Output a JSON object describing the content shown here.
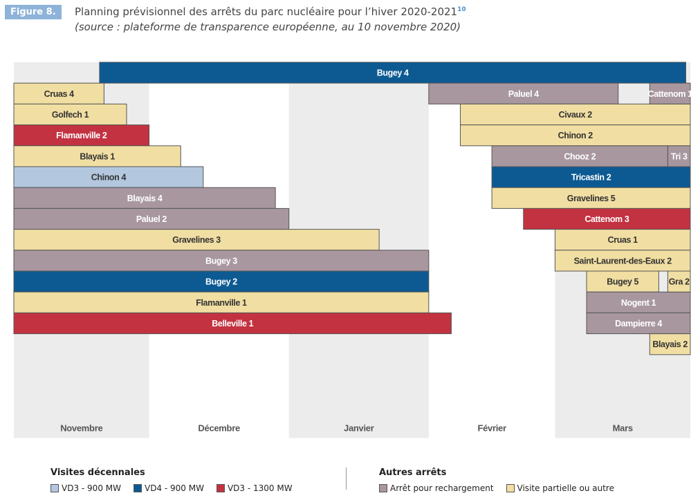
{
  "figure_label": "Figure 8.",
  "title": "Planning prévisionnel des arrêts du parc nucléaire pour l’hiver 2020-2021",
  "title_note": "10",
  "subtitle": "(source : plateforme de transparence européenne, au 10 novembre 2020)",
  "colors": {
    "vd3_900": "#b3c8df",
    "vd4_900": "#0d5a92",
    "vd3_1300": "#c33241",
    "rechargement": "#a8979f",
    "partielle": "#f1dea2",
    "band": "#ececec"
  },
  "chart_data": {
    "type": "gantt",
    "months": [
      "Novembre",
      "Décembre",
      "Janvier",
      "Février",
      "Mars"
    ],
    "month_spans": [
      [
        "2020-11-01",
        "2020-12-01"
      ],
      [
        "2020-12-01",
        "2021-01-01"
      ],
      [
        "2021-01-01",
        "2021-02-01"
      ],
      [
        "2021-02-01",
        "2021-03-01"
      ],
      [
        "2021-03-01",
        "2021-03-31"
      ]
    ],
    "rows": [
      {
        "name": "Bugey 4",
        "start": "2020-11-20",
        "end": "2021-03-30",
        "category": "vd4_900"
      },
      {
        "name": "Paluel 4",
        "start": "2021-02-01",
        "end": "2021-03-15",
        "category": "rechargement"
      },
      {
        "name": "Civaux 2",
        "start": "2021-02-08",
        "end": "2021-03-31",
        "category": "partielle"
      },
      {
        "name": "Chinon 2",
        "start": "2021-02-08",
        "end": "2021-03-31",
        "category": "partielle"
      },
      {
        "name": "Chooz 2",
        "start": "2021-02-15",
        "end": "2021-03-26",
        "category": "rechargement"
      },
      {
        "name": "Tricastin 2",
        "start": "2021-02-15",
        "end": "2021-03-31",
        "category": "vd4_900"
      },
      {
        "name": "Gravelines 5",
        "start": "2021-02-15",
        "end": "2021-03-31",
        "category": "partielle"
      },
      {
        "name": "Cattenom 3",
        "start": "2021-02-22",
        "end": "2021-03-31",
        "category": "vd3_1300"
      },
      {
        "name": "Cruas 1",
        "start": "2021-03-01",
        "end": "2021-03-31",
        "category": "partielle"
      },
      {
        "name": "Saint-Laurent-des-Eaux 2",
        "start": "2021-03-01",
        "end": "2021-03-31",
        "category": "partielle"
      },
      {
        "name": "Bugey 5",
        "start": "2021-03-08",
        "end": "2021-03-24",
        "category": "partielle"
      },
      {
        "name": "Nogent 1",
        "start": "2021-03-08",
        "end": "2021-03-31",
        "category": "rechargement"
      },
      {
        "name": "Dampierre 4",
        "start": "2021-03-08",
        "end": "2021-03-31",
        "category": "rechargement"
      },
      {
        "name": "Cattenom 1",
        "start": "2021-03-22",
        "end": "2021-03-31",
        "category": "rechargement"
      },
      {
        "name": "Blayais 2",
        "start": "2021-03-22",
        "end": "2021-03-31",
        "category": "partielle"
      },
      {
        "name": "Tri 3",
        "start": "2021-03-26",
        "end": "2021-03-31",
        "category": "rechargement"
      },
      {
        "name": "Gra 2",
        "start": "2021-03-26",
        "end": "2021-03-31",
        "category": "partielle"
      },
      {
        "name": "Cruas 4",
        "start": "2020-11-01",
        "end": "2020-11-21",
        "category": "partielle"
      },
      {
        "name": "Golfech 1",
        "start": "2020-11-01",
        "end": "2020-11-26",
        "category": "partielle"
      },
      {
        "name": "Flamanville 2",
        "start": "2020-11-01",
        "end": "2020-12-01",
        "category": "vd3_1300"
      },
      {
        "name": "Blayais 1",
        "start": "2020-11-01",
        "end": "2020-12-08",
        "category": "partielle"
      },
      {
        "name": "Chinon 4",
        "start": "2020-11-01",
        "end": "2020-12-13",
        "category": "vd3_900"
      },
      {
        "name": "Blayais 4",
        "start": "2020-11-01",
        "end": "2020-12-29",
        "category": "rechargement"
      },
      {
        "name": "Paluel 2",
        "start": "2020-11-01",
        "end": "2021-01-01",
        "category": "rechargement"
      },
      {
        "name": "Gravelines 3",
        "start": "2020-11-01",
        "end": "2021-01-21",
        "category": "partielle"
      },
      {
        "name": "Bugey 3",
        "start": "2020-11-01",
        "end": "2021-02-01",
        "category": "rechargement"
      },
      {
        "name": "Bugey 2",
        "start": "2020-11-01",
        "end": "2021-02-01",
        "category": "vd4_900"
      },
      {
        "name": "Flamanville 1",
        "start": "2020-11-01",
        "end": "2021-02-01",
        "category": "partielle"
      },
      {
        "name": "Belleville 1",
        "start": "2020-11-01",
        "end": "2021-02-06",
        "category": "vd3_1300"
      }
    ]
  },
  "legend": {
    "visites": {
      "heading": "Visites décennales",
      "items": [
        {
          "label": "VD3 - 900 MW",
          "color": "#b3c8df"
        },
        {
          "label": "VD4 - 900 MW",
          "color": "#0d5a92"
        },
        {
          "label": "VD3 - 1300 MW",
          "color": "#c33241"
        }
      ]
    },
    "autres": {
      "heading": "Autres arrêts",
      "items": [
        {
          "label": "Arrêt pour rechargement",
          "color": "#a8979f"
        },
        {
          "label": "Visite partielle ou autre",
          "color": "#f1dea2"
        }
      ]
    }
  }
}
